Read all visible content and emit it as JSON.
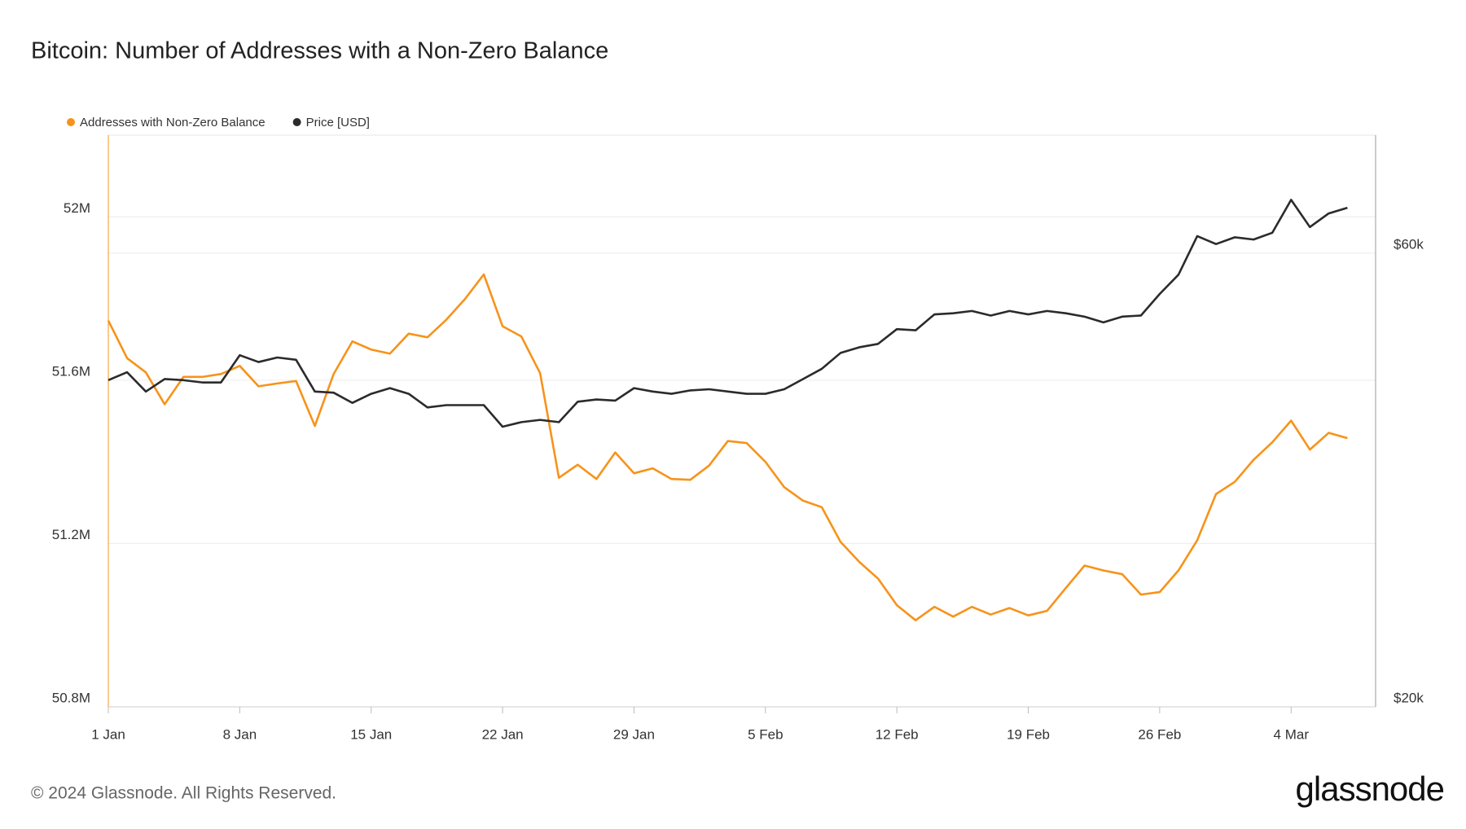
{
  "chart_data": {
    "type": "line",
    "title": "Bitcoin: Number of Addresses with a Non-Zero Balance",
    "footer": "© 2024 Glassnode. All Rights Reserved.",
    "brand": "glassnode",
    "legend": "top-left",
    "categories": [
      "1 Jan",
      null,
      null,
      null,
      null,
      null,
      null,
      "8 Jan",
      null,
      null,
      null,
      null,
      null,
      null,
      "15 Jan",
      null,
      null,
      null,
      null,
      null,
      null,
      "22 Jan",
      null,
      null,
      null,
      null,
      null,
      null,
      "29 Jan",
      null,
      null,
      null,
      null,
      null,
      null,
      "5 Feb",
      null,
      null,
      null,
      null,
      null,
      null,
      "12 Feb",
      null,
      null,
      null,
      null,
      null,
      null,
      "19 Feb",
      null,
      null,
      null,
      null,
      null,
      null,
      "26 Feb",
      null,
      null,
      null,
      null,
      null,
      null,
      "4 Mar",
      null,
      null,
      null
    ],
    "ylim": [
      50800000,
      52200000
    ],
    "yticks": [
      {
        "value": 50800000,
        "label": "50.8M"
      },
      {
        "value": 51200000,
        "label": "51.2M"
      },
      {
        "value": 51600000,
        "label": "51.6M"
      },
      {
        "value": 52000000,
        "label": "52M"
      }
    ],
    "y2lim": [
      20000,
      70400
    ],
    "y2ticks": [
      {
        "value": 20000,
        "label": "$20k"
      },
      {
        "value": 60000,
        "label": "$60k"
      }
    ],
    "grid": true,
    "series": [
      {
        "name": "Addresses with Non-Zero Balance",
        "color": "#f7931a",
        "axis": "y",
        "values": [
          51746000,
          51654000,
          51619000,
          51541000,
          51608000,
          51608000,
          51615000,
          51635000,
          51585000,
          51592000,
          51598000,
          51488000,
          51615000,
          51695000,
          51675000,
          51665000,
          51714000,
          51705000,
          51748000,
          51799000,
          51859000,
          51732000,
          51707000,
          51617000,
          51361000,
          51393000,
          51358000,
          51423000,
          51372000,
          51384000,
          51358000,
          51356000,
          51391000,
          51451000,
          51446000,
          51400000,
          51338000,
          51305000,
          51289000,
          51204000,
          51155000,
          51114000,
          51049000,
          51012000,
          51045000,
          51021000,
          51045000,
          51026000,
          51042000,
          51024000,
          51035000,
          51091000,
          51146000,
          51134000,
          51125000,
          51075000,
          51081000,
          51134000,
          51208000,
          51321000,
          51351000,
          51405000,
          51448000,
          51501000,
          51430000,
          51471000,
          51458000
        ]
      },
      {
        "name": "Price [USD]",
        "color": "#2b2b2b",
        "axis": "y2",
        "values": [
          48800,
          49500,
          47800,
          48900,
          48800,
          48600,
          48600,
          51000,
          50400,
          50800,
          50600,
          47800,
          47700,
          46800,
          47600,
          48100,
          47600,
          46400,
          46600,
          46600,
          46600,
          44700,
          45100,
          45300,
          45100,
          46900,
          47100,
          47000,
          48100,
          47800,
          47600,
          47900,
          48000,
          47800,
          47600,
          47600,
          48000,
          48900,
          49800,
          51200,
          51700,
          52000,
          53300,
          53200,
          54600,
          54700,
          54900,
          54500,
          54900,
          54600,
          54900,
          54700,
          54400,
          53900,
          54400,
          54500,
          56400,
          58100,
          61500,
          60800,
          61400,
          61200,
          61800,
          64700,
          62300,
          63500,
          64000
        ]
      }
    ]
  }
}
